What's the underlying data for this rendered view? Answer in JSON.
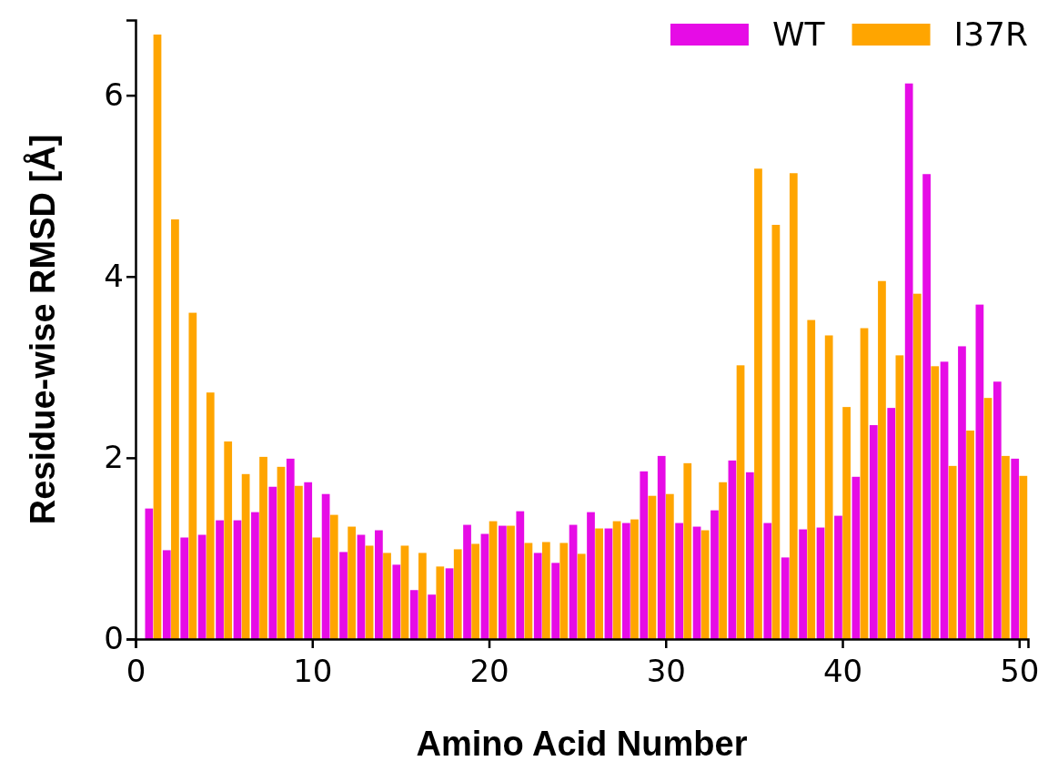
{
  "chart_data": {
    "type": "bar",
    "xlabel": "Amino Acid Number",
    "ylabel": "Residue-wise RMSD [Å]",
    "x": [
      1,
      2,
      3,
      4,
      5,
      6,
      7,
      8,
      9,
      10,
      11,
      12,
      13,
      14,
      15,
      16,
      17,
      18,
      19,
      20,
      21,
      22,
      23,
      24,
      25,
      26,
      27,
      28,
      29,
      30,
      31,
      32,
      33,
      34,
      35,
      36,
      37,
      38,
      39,
      40,
      41,
      42,
      43,
      44,
      45,
      46,
      47,
      48,
      49,
      50
    ],
    "series": [
      {
        "name": "WT",
        "color": "#e60ce6",
        "values": [
          1.44,
          0.98,
          1.12,
          1.15,
          1.31,
          1.31,
          1.4,
          1.68,
          1.99,
          1.73,
          1.6,
          0.96,
          1.15,
          1.2,
          0.82,
          0.54,
          0.49,
          0.78,
          1.26,
          1.16,
          1.25,
          1.41,
          0.95,
          0.84,
          1.26,
          1.4,
          1.22,
          1.28,
          1.85,
          2.02,
          1.28,
          1.24,
          1.42,
          1.97,
          1.84,
          1.28,
          0.9,
          1.21,
          1.23,
          1.36,
          1.79,
          2.36,
          2.55,
          6.13,
          5.13,
          3.06,
          3.23,
          3.69,
          2.84,
          1.99
        ]
      },
      {
        "name": "I37R",
        "color": "#ffa500",
        "values": [
          6.67,
          4.63,
          3.6,
          2.72,
          2.18,
          1.82,
          2.01,
          1.9,
          1.69,
          1.12,
          1.37,
          1.24,
          1.03,
          0.95,
          1.03,
          0.95,
          0.8,
          0.99,
          1.05,
          1.3,
          1.25,
          1.06,
          1.07,
          1.06,
          0.94,
          1.22,
          1.3,
          1.32,
          1.58,
          1.6,
          1.94,
          1.2,
          1.73,
          3.02,
          5.19,
          4.57,
          5.14,
          3.52,
          3.35,
          2.56,
          3.43,
          3.95,
          3.13,
          3.81,
          3.01,
          1.91,
          2.3,
          2.66,
          2.02,
          1.8
        ]
      }
    ],
    "xlim": [
      0,
      50.5
    ],
    "xticks": [
      0,
      10,
      20,
      30,
      40,
      50
    ],
    "ylim": [
      0,
      6.83
    ],
    "yticks": [
      0,
      2,
      4,
      6
    ],
    "legend": "top right",
    "grid": false
  }
}
